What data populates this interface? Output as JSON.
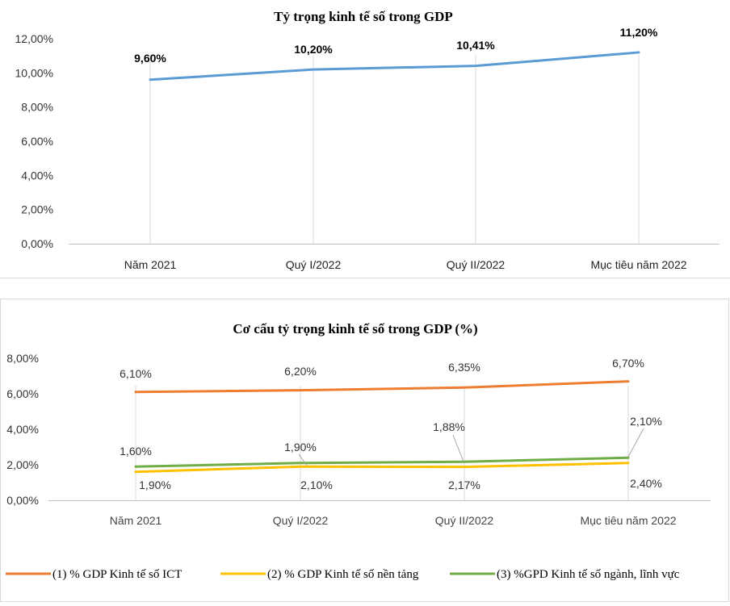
{
  "chart_data": [
    {
      "type": "line",
      "title": "Tỷ trọng kinh tế số trong GDP",
      "categories": [
        "Năm 2021",
        "Quý I/2022",
        "Quý II/2022",
        "Mục tiêu năm 2022"
      ],
      "series": [
        {
          "name": "Tỷ trọng kinh tế số trong GDP",
          "values": [
            9.6,
            10.2,
            10.41,
            11.2
          ],
          "labels": [
            "9,60%",
            "10,20%",
            "10,41%",
            "11,20%"
          ],
          "color": "#5b9bd5"
        }
      ],
      "yticks": [
        "0,00%",
        "2,00%",
        "4,00%",
        "6,00%",
        "8,00%",
        "10,00%",
        "12,00%"
      ],
      "ylim": [
        0,
        12
      ],
      "xlabel": "",
      "ylabel": "",
      "grid": "vertical"
    },
    {
      "type": "line",
      "title": "Cơ cấu tỷ trọng kinh tế số trong GDP (%)",
      "categories": [
        "Năm 2021",
        "Quý I/2022",
        "Quý II/2022",
        "Mục tiêu năm 2022"
      ],
      "series": [
        {
          "name": "(1) % GDP Kinh tế số ICT",
          "values": [
            6.1,
            6.2,
            6.35,
            6.7
          ],
          "labels": [
            "6,10%",
            "6,20%",
            "6,35%",
            "6,70%"
          ],
          "color": "#ed7d31"
        },
        {
          "name": "(2) % GDP Kinh tế số nền tảng",
          "values": [
            1.6,
            1.9,
            1.88,
            2.1
          ],
          "labels": [
            "1,60%",
            "1,90%",
            "1,88%",
            "2,10%"
          ],
          "color": "#ffc000"
        },
        {
          "name": "(3) %GPD Kinh tế số ngành, lĩnh vực",
          "values": [
            1.9,
            2.1,
            2.17,
            2.4
          ],
          "labels": [
            "1,90%",
            "2,10%",
            "2,17%",
            "2,40%"
          ],
          "color": "#70ad47"
        }
      ],
      "yticks": [
        "0,00%",
        "2,00%",
        "4,00%",
        "6,00%",
        "8,00%"
      ],
      "ylim": [
        0,
        8
      ],
      "xlabel": "",
      "ylabel": "",
      "grid": "vertical",
      "legend": "bottom"
    }
  ]
}
